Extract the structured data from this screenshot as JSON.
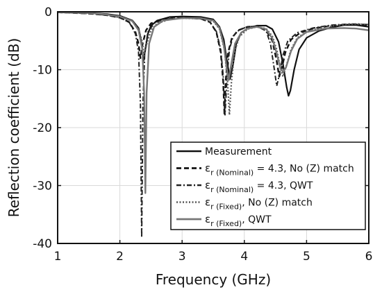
{
  "chart_data": {
    "type": "line",
    "title": "",
    "xlabel": "Frequency (GHz)",
    "ylabel": "Reflection coefficient (dB)",
    "xlim": [
      1,
      6
    ],
    "ylim": [
      -40,
      0
    ],
    "xticks": [
      1,
      2,
      3,
      4,
      5,
      6
    ],
    "yticks": [
      0,
      -10,
      -20,
      -30,
      -40
    ],
    "x_tick_labels": [
      "1",
      "2",
      "3",
      "4",
      "5",
      "6"
    ],
    "y_tick_labels": [
      "0",
      "-10",
      "-20",
      "-30",
      "-40"
    ],
    "grid": true,
    "legend_position": "bottom-right",
    "series": [
      {
        "name": "Measurement",
        "style": "solid",
        "color": "#111111",
        "points": [
          [
            1.0,
            -0.1
          ],
          [
            1.5,
            -0.2
          ],
          [
            1.8,
            -0.4
          ],
          [
            2.0,
            -0.7
          ],
          [
            2.2,
            -1.5
          ],
          [
            2.3,
            -2.8
          ],
          [
            2.35,
            -5.5
          ],
          [
            2.38,
            -8.5
          ],
          [
            2.41,
            -6.5
          ],
          [
            2.45,
            -3.8
          ],
          [
            2.5,
            -2.4
          ],
          [
            2.6,
            -1.5
          ],
          [
            2.8,
            -0.9
          ],
          [
            3.0,
            -0.8
          ],
          [
            3.3,
            -0.9
          ],
          [
            3.5,
            -1.3
          ],
          [
            3.6,
            -2.6
          ],
          [
            3.67,
            -4.8
          ],
          [
            3.72,
            -8.5
          ],
          [
            3.77,
            -11.6
          ],
          [
            3.82,
            -9
          ],
          [
            3.87,
            -5.5
          ],
          [
            3.95,
            -3.6
          ],
          [
            4.05,
            -2.9
          ],
          [
            4.2,
            -2.4
          ],
          [
            4.35,
            -2.4
          ],
          [
            4.45,
            -3
          ],
          [
            4.55,
            -5.2
          ],
          [
            4.62,
            -9
          ],
          [
            4.68,
            -13
          ],
          [
            4.71,
            -14.5
          ],
          [
            4.74,
            -13.6
          ],
          [
            4.8,
            -10
          ],
          [
            4.88,
            -6.5
          ],
          [
            5.0,
            -4.5
          ],
          [
            5.2,
            -3.3
          ],
          [
            5.4,
            -2.7
          ],
          [
            5.6,
            -2.3
          ],
          [
            5.8,
            -2.3
          ],
          [
            6.0,
            -2.6
          ]
        ]
      },
      {
        "name": "εr (Nominal) = 4.3, No (Z) match",
        "style": "dashed",
        "color": "#111111",
        "points": [
          [
            1.0,
            -0.1
          ],
          [
            1.5,
            -0.3
          ],
          [
            1.8,
            -0.6
          ],
          [
            2.0,
            -1.0
          ],
          [
            2.15,
            -1.8
          ],
          [
            2.25,
            -3.5
          ],
          [
            2.3,
            -5.5
          ],
          [
            2.33,
            -8
          ],
          [
            2.36,
            -5.8
          ],
          [
            2.42,
            -3.2
          ],
          [
            2.5,
            -2.0
          ],
          [
            2.7,
            -1.3
          ],
          [
            3.0,
            -1.0
          ],
          [
            3.3,
            -1.2
          ],
          [
            3.45,
            -1.8
          ],
          [
            3.55,
            -3.5
          ],
          [
            3.62,
            -7
          ],
          [
            3.66,
            -12
          ],
          [
            3.68,
            -17.6
          ],
          [
            3.7,
            -12
          ],
          [
            3.74,
            -7
          ],
          [
            3.8,
            -4.5
          ],
          [
            3.9,
            -3.2
          ],
          [
            4.05,
            -2.6
          ],
          [
            4.2,
            -2.5
          ],
          [
            4.35,
            -3.2
          ],
          [
            4.45,
            -5
          ],
          [
            4.52,
            -8.5
          ],
          [
            4.56,
            -11.2
          ],
          [
            4.6,
            -9.8
          ],
          [
            4.66,
            -7
          ],
          [
            4.75,
            -4.8
          ],
          [
            4.9,
            -3.6
          ],
          [
            5.1,
            -2.9
          ],
          [
            5.4,
            -2.4
          ],
          [
            5.7,
            -2.2
          ],
          [
            6.0,
            -2.3
          ]
        ]
      },
      {
        "name": "εr (Nominal) = 4.3, QWT",
        "style": "dashdot",
        "color": "#222222",
        "points": [
          [
            1.0,
            -0.1
          ],
          [
            1.5,
            -0.3
          ],
          [
            1.8,
            -0.6
          ],
          [
            2.0,
            -1.0
          ],
          [
            2.15,
            -1.8
          ],
          [
            2.25,
            -3.8
          ],
          [
            2.3,
            -7
          ],
          [
            2.33,
            -16
          ],
          [
            2.35,
            -39
          ],
          [
            2.37,
            -16
          ],
          [
            2.4,
            -7
          ],
          [
            2.45,
            -3.5
          ],
          [
            2.55,
            -2.0
          ],
          [
            2.7,
            -1.3
          ],
          [
            3.0,
            -1.0
          ],
          [
            3.3,
            -1.2
          ],
          [
            3.45,
            -1.8
          ],
          [
            3.55,
            -3.4
          ],
          [
            3.62,
            -6.5
          ],
          [
            3.66,
            -11
          ],
          [
            3.69,
            -17.8
          ],
          [
            3.72,
            -11.5
          ],
          [
            3.76,
            -6.5
          ],
          [
            3.82,
            -4.2
          ],
          [
            3.92,
            -3.1
          ],
          [
            4.05,
            -2.6
          ],
          [
            4.2,
            -2.5
          ],
          [
            4.35,
            -3.3
          ],
          [
            4.42,
            -5.5
          ],
          [
            4.48,
            -9.8
          ],
          [
            4.52,
            -12.8
          ],
          [
            4.56,
            -11
          ],
          [
            4.62,
            -7.5
          ],
          [
            4.7,
            -5
          ],
          [
            4.85,
            -3.6
          ],
          [
            5.1,
            -2.8
          ],
          [
            5.4,
            -2.3
          ],
          [
            5.7,
            -2.1
          ],
          [
            6.0,
            -2.2
          ]
        ]
      },
      {
        "name": "εr (Fixed), No (Z) match",
        "style": "dotted",
        "color": "#555555",
        "points": [
          [
            1.0,
            -0.1
          ],
          [
            1.5,
            -0.2
          ],
          [
            1.8,
            -0.5
          ],
          [
            2.0,
            -0.8
          ],
          [
            2.2,
            -1.6
          ],
          [
            2.3,
            -3
          ],
          [
            2.36,
            -5.2
          ],
          [
            2.39,
            -7.6
          ],
          [
            2.43,
            -5.6
          ],
          [
            2.5,
            -3.2
          ],
          [
            2.6,
            -2.0
          ],
          [
            2.8,
            -1.3
          ],
          [
            3.0,
            -1.1
          ],
          [
            3.3,
            -1.2
          ],
          [
            3.5,
            -1.6
          ],
          [
            3.6,
            -3
          ],
          [
            3.68,
            -6.5
          ],
          [
            3.73,
            -12
          ],
          [
            3.76,
            -17.8
          ],
          [
            3.79,
            -12.5
          ],
          [
            3.84,
            -7
          ],
          [
            3.92,
            -4.3
          ],
          [
            4.05,
            -3.0
          ],
          [
            4.2,
            -2.6
          ],
          [
            4.35,
            -2.9
          ],
          [
            4.45,
            -4.2
          ],
          [
            4.52,
            -6.5
          ],
          [
            4.57,
            -9.2
          ],
          [
            4.62,
            -11.2
          ],
          [
            4.67,
            -9.5
          ],
          [
            4.75,
            -6.5
          ],
          [
            4.85,
            -4.5
          ],
          [
            5.0,
            -3.4
          ],
          [
            5.3,
            -2.6
          ],
          [
            5.6,
            -2.2
          ],
          [
            5.8,
            -2.1
          ],
          [
            6.0,
            -2.2
          ]
        ]
      },
      {
        "name": "εr (Fixed), QWT",
        "style": "solid-gray",
        "color": "#777777",
        "points": [
          [
            1.0,
            -0.1
          ],
          [
            1.5,
            -0.2
          ],
          [
            1.8,
            -0.5
          ],
          [
            2.0,
            -0.8
          ],
          [
            2.2,
            -1.6
          ],
          [
            2.3,
            -3.2
          ],
          [
            2.36,
            -6.5
          ],
          [
            2.39,
            -14
          ],
          [
            2.41,
            -31.3
          ],
          [
            2.43,
            -14
          ],
          [
            2.47,
            -5.5
          ],
          [
            2.55,
            -2.6
          ],
          [
            2.7,
            -1.5
          ],
          [
            3.0,
            -1.1
          ],
          [
            3.3,
            -1.1
          ],
          [
            3.5,
            -1.5
          ],
          [
            3.6,
            -2.8
          ],
          [
            3.67,
            -5.8
          ],
          [
            3.72,
            -10
          ],
          [
            3.75,
            -11.8
          ],
          [
            3.79,
            -9
          ],
          [
            3.85,
            -5.5
          ],
          [
            3.95,
            -3.6
          ],
          [
            4.05,
            -2.9
          ],
          [
            4.2,
            -2.6
          ],
          [
            4.35,
            -3
          ],
          [
            4.45,
            -4.6
          ],
          [
            4.52,
            -7.2
          ],
          [
            4.58,
            -9.8
          ],
          [
            4.62,
            -10.4
          ],
          [
            4.67,
            -9.6
          ],
          [
            4.75,
            -6.8
          ],
          [
            4.85,
            -4.7
          ],
          [
            5.0,
            -3.5
          ],
          [
            5.3,
            -2.9
          ],
          [
            5.6,
            -2.8
          ],
          [
            5.8,
            -2.9
          ],
          [
            6.0,
            -3.2
          ]
        ]
      }
    ]
  },
  "legend": {
    "items": [
      {
        "pre": "Measurement",
        "sub": "",
        "post": ""
      },
      {
        "pre": "ε",
        "sub": "r (Nominal)",
        "post": " = 4.3, No (Z) match"
      },
      {
        "pre": "ε",
        "sub": "r (Nominal)",
        "post": " = 4.3, QWT"
      },
      {
        "pre": "ε",
        "sub": "r (Fixed)",
        "post": ", No (Z) match"
      },
      {
        "pre": "ε",
        "sub": "r (Fixed)",
        "post": ", QWT"
      }
    ]
  }
}
